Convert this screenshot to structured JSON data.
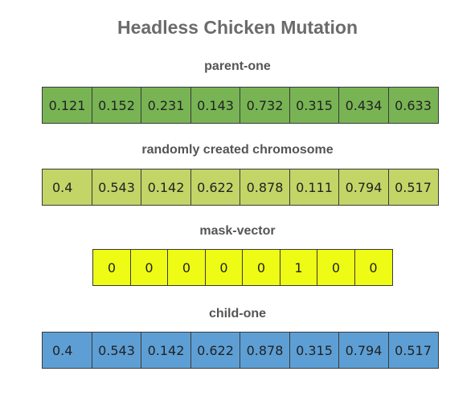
{
  "title": "Headless Chicken Mutation",
  "colors": {
    "parent": "#78b454",
    "random": "#c3d567",
    "mask": "#eefc15",
    "child": "#5d9fd5",
    "title_text": "#6b6b6b"
  },
  "parent": {
    "label": "parent-one",
    "values": [
      "0.121",
      "0.152",
      "0.231",
      "0.143",
      "0.732",
      "0.315",
      "0.434",
      "0.633"
    ]
  },
  "random": {
    "label": "randomly created chromosome",
    "values": [
      "0.4",
      "0.543",
      "0.142",
      "0.622",
      "0.878",
      "0.111",
      "0.794",
      "0.517"
    ]
  },
  "mask": {
    "label": "mask-vector",
    "values": [
      "0",
      "0",
      "0",
      "0",
      "0",
      "1",
      "0",
      "0"
    ]
  },
  "child": {
    "label": "child-one",
    "values": [
      "0.4",
      "0.543",
      "0.142",
      "0.622",
      "0.878",
      "0.315",
      "0.794",
      "0.517"
    ]
  }
}
